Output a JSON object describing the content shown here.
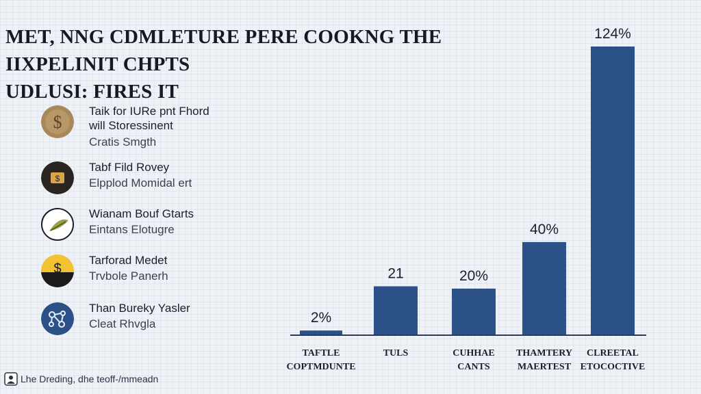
{
  "title": {
    "line1": "MET, NNG CDMLETURE PERE COOKNG THE IIXPELINIT CHPTS",
    "line2": "UDLUSI: FIRES IT"
  },
  "legend": [
    {
      "icon": "dollar-coin-icon",
      "title": "Taik for IURe pnt Fhord\nwill Storessinent",
      "subtitle": "Cratis Smgth",
      "color": "#a8885a"
    },
    {
      "icon": "dollar-bill-icon",
      "title": "Tabf Fild Rovey",
      "subtitle": "Elpplod Momidal ert",
      "color": "#2a2520"
    },
    {
      "icon": "leaf-icon",
      "title": "Wianam Bouf Gtarts",
      "subtitle": "Eintans Elotugre",
      "color": "#ffffff"
    },
    {
      "icon": "dollar-badge-icon",
      "title": "Tarforad Medet",
      "subtitle": "Trvbole Panerh",
      "color": "#f1c232"
    },
    {
      "icon": "network-icon",
      "title": "Than Bureky Yasler",
      "subtitle": "Cleat Rhvgla",
      "color": "#2c5189"
    }
  ],
  "footer": {
    "text": "Lhe Dreding, dhe teoff-/mmeadn"
  },
  "chart_data": {
    "type": "bar",
    "categories": [
      "TAFTLE COPTMDUNTE",
      "TULS",
      "CUHHAE CANTS",
      "THAMTERY MAERTEST",
      "CLREETAL ETOCOCTIVE"
    ],
    "values": [
      2,
      21,
      20,
      40,
      124
    ],
    "value_labels": [
      "2%",
      "21",
      "20%",
      "40%",
      "124%"
    ],
    "ylim": [
      0,
      124
    ],
    "bar_color": "#2c5189",
    "axis": "baseline only, no gridlines"
  }
}
